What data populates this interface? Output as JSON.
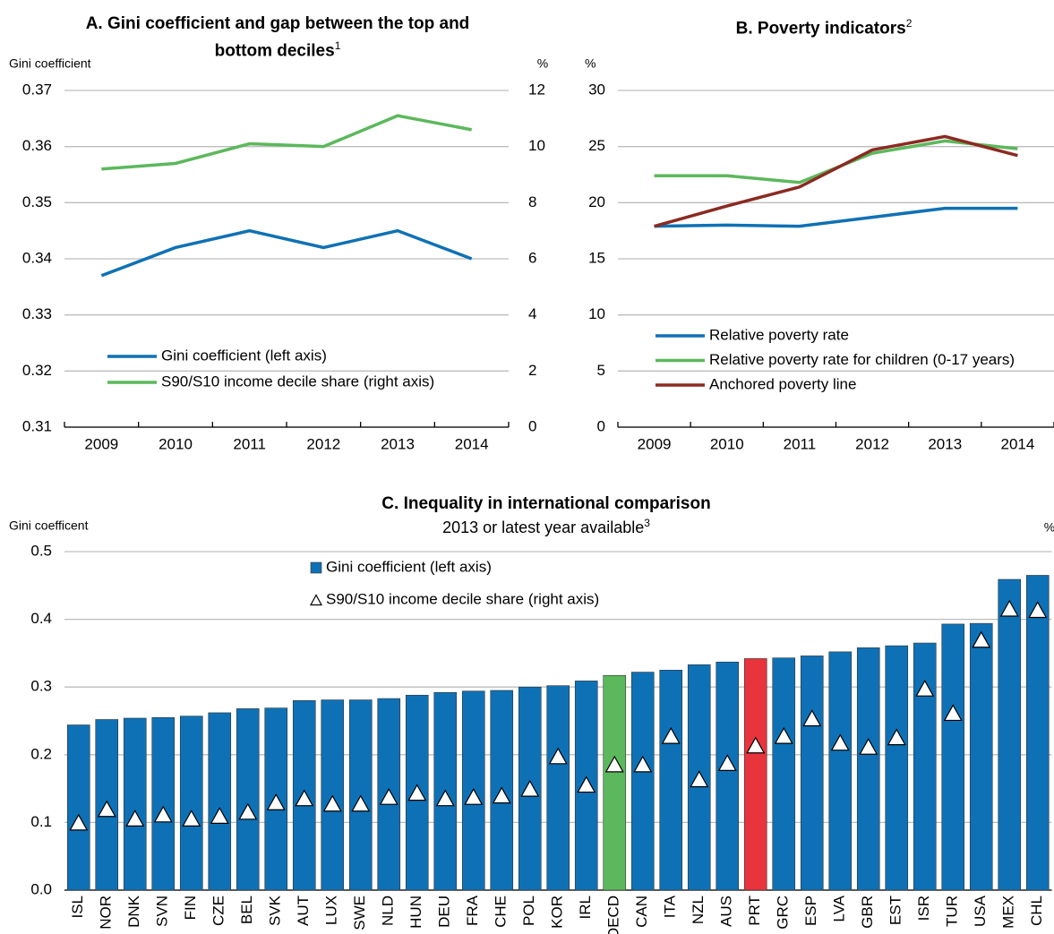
{
  "chart_data": [
    {
      "type": "line",
      "title": "A. Gini coefficient and gap between the top and bottom deciles",
      "title_sup": "1",
      "y_label": "Gini coefficient",
      "y2_label": "%",
      "categories": [
        "2009",
        "2010",
        "2011",
        "2012",
        "2013",
        "2014"
      ],
      "series": [
        {
          "name": "Gini coefficient (left axis)",
          "color": "#0f71b5",
          "values": [
            0.337,
            0.342,
            0.345,
            0.342,
            0.345,
            0.34
          ]
        },
        {
          "name": "S90/S10 income decile share (right axis)",
          "color": "#5cb85c",
          "axis": "y2",
          "values": [
            9.2,
            9.4,
            10.1,
            10.0,
            11.1,
            10.6
          ]
        }
      ],
      "ylim": [
        0.31,
        0.37
      ],
      "yticks": [
        0.31,
        0.32,
        0.33,
        0.34,
        0.35,
        0.36,
        0.37
      ],
      "y2lim": [
        0,
        12
      ],
      "y2ticks": [
        0,
        2,
        4,
        6,
        8,
        10,
        12
      ],
      "grid": true
    },
    {
      "type": "line",
      "title": "B. Poverty indicators",
      "title_sup": "2",
      "y_label": "%",
      "categories": [
        "2009",
        "2010",
        "2011",
        "2012",
        "2013",
        "2014"
      ],
      "series": [
        {
          "name": "Relative poverty rate",
          "color": "#0f71b5",
          "values": [
            17.9,
            18.0,
            17.9,
            18.7,
            19.5,
            19.5
          ]
        },
        {
          "name": "Relative poverty rate for children (0-17 years)",
          "color": "#5cb85c",
          "values": [
            22.4,
            22.4,
            21.8,
            24.4,
            25.5,
            24.8
          ]
        },
        {
          "name": "Anchored poverty line",
          "color": "#8b2a22",
          "values": [
            17.9,
            19.7,
            21.4,
            24.7,
            25.9,
            24.2
          ]
        }
      ],
      "ylim": [
        0,
        30
      ],
      "yticks": [
        0,
        5,
        10,
        15,
        20,
        25,
        30
      ],
      "grid": true
    },
    {
      "type": "bar",
      "title": "C. Inequality in international comparison",
      "subtitle": "2013 or latest year available",
      "subtitle_sup": "3",
      "y_label": "Gini coefficent",
      "y2_label": "%",
      "categories": [
        "ISL",
        "NOR",
        "DNK",
        "SVN",
        "FIN",
        "CZE",
        "BEL",
        "SVK",
        "AUT",
        "LUX",
        "SWE",
        "NLD",
        "HUN",
        "DEU",
        "FRA",
        "CHE",
        "POL",
        "KOR",
        "IRL",
        "OECD",
        "CAN",
        "ITA",
        "NZL",
        "AUS",
        "PRT",
        "GRC",
        "ESP",
        "LVA",
        "GBR",
        "EST",
        "ISR",
        "TUR",
        "USA",
        "MEX",
        "CHL"
      ],
      "series": [
        {
          "name": "Gini coefficient (left axis)",
          "mark": "bar",
          "color": "#0f71b5",
          "bar_colors": [
            "#0f71b5",
            "#0f71b5",
            "#0f71b5",
            "#0f71b5",
            "#0f71b5",
            "#0f71b5",
            "#0f71b5",
            "#0f71b5",
            "#0f71b5",
            "#0f71b5",
            "#0f71b5",
            "#0f71b5",
            "#0f71b5",
            "#0f71b5",
            "#0f71b5",
            "#0f71b5",
            "#0f71b5",
            "#0f71b5",
            "#0f71b5",
            "#5cb85c",
            "#0f71b5",
            "#0f71b5",
            "#0f71b5",
            "#0f71b5",
            "#e8343c",
            "#0f71b5",
            "#0f71b5",
            "#0f71b5",
            "#0f71b5",
            "#0f71b5",
            "#0f71b5",
            "#0f71b5",
            "#0f71b5",
            "#0f71b5",
            "#0f71b5"
          ],
          "values": [
            0.244,
            0.252,
            0.254,
            0.255,
            0.257,
            0.262,
            0.268,
            0.269,
            0.28,
            0.281,
            0.281,
            0.283,
            0.288,
            0.292,
            0.294,
            0.295,
            0.3,
            0.302,
            0.309,
            0.317,
            0.322,
            0.325,
            0.333,
            0.337,
            0.342,
            0.343,
            0.346,
            0.352,
            0.358,
            0.361,
            0.365,
            0.393,
            0.394,
            0.459,
            0.465
          ]
        },
        {
          "name": "S90/S10 income decile share (right axis)",
          "mark": "triangle",
          "color": "#ffffff",
          "axis": "y2",
          "values": [
            5.0,
            6.0,
            5.3,
            5.6,
            5.3,
            5.5,
            5.8,
            6.5,
            6.8,
            6.4,
            6.4,
            6.9,
            7.2,
            6.8,
            6.9,
            7.0,
            7.5,
            9.9,
            7.8,
            9.3,
            9.3,
            11.4,
            8.2,
            9.4,
            10.7,
            11.4,
            12.7,
            10.9,
            10.6,
            11.3,
            14.9,
            13.1,
            18.5,
            20.8,
            20.7
          ]
        }
      ],
      "ylim": [
        0,
        0.5
      ],
      "yticks": [
        {
          "value": 0,
          "label": "0.0"
        },
        0.1,
        0.2,
        0.3,
        0.4,
        0.5
      ],
      "y2lim": [
        0,
        25
      ],
      "grid": true
    }
  ]
}
